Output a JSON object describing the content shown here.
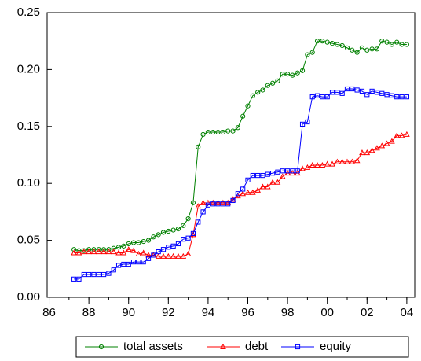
{
  "chart_data": {
    "type": "line",
    "x": [
      1987.25,
      1987.5,
      1987.75,
      1988,
      1988.25,
      1988.5,
      1988.75,
      1989,
      1989.25,
      1989.5,
      1989.75,
      1990,
      1990.25,
      1990.5,
      1990.75,
      1991,
      1991.25,
      1991.5,
      1991.75,
      1992,
      1992.25,
      1992.5,
      1992.75,
      1993,
      1993.25,
      1993.5,
      1993.75,
      1994,
      1994.25,
      1994.5,
      1994.75,
      1995,
      1995.25,
      1995.5,
      1995.75,
      1996,
      1996.25,
      1996.5,
      1996.75,
      1997,
      1997.25,
      1997.5,
      1997.75,
      1998,
      1998.25,
      1998.5,
      1998.75,
      1999,
      1999.25,
      1999.5,
      1999.75,
      2000,
      2000.25,
      2000.5,
      2000.75,
      2001,
      2001.25,
      2001.5,
      2001.75,
      2002,
      2002.25,
      2002.5,
      2002.75,
      2003,
      2003.25,
      2003.5,
      2003.75,
      2004
    ],
    "series": [
      {
        "name": "total assets",
        "color": "#008000",
        "marker": "circle",
        "values": [
          0.042,
          0.041,
          0.041,
          0.042,
          0.042,
          0.042,
          0.042,
          0.042,
          0.043,
          0.044,
          0.045,
          0.047,
          0.048,
          0.048,
          0.049,
          0.05,
          0.053,
          0.055,
          0.057,
          0.058,
          0.059,
          0.06,
          0.063,
          0.069,
          0.083,
          0.132,
          0.143,
          0.145,
          0.145,
          0.145,
          0.145,
          0.146,
          0.146,
          0.149,
          0.159,
          0.168,
          0.177,
          0.18,
          0.182,
          0.186,
          0.188,
          0.19,
          0.196,
          0.196,
          0.195,
          0.197,
          0.199,
          0.213,
          0.215,
          0.225,
          0.225,
          0.224,
          0.223,
          0.222,
          0.221,
          0.219,
          0.217,
          0.215,
          0.219,
          0.217,
          0.218,
          0.218,
          0.225,
          0.224,
          0.222,
          0.224,
          0.222,
          0.222
        ]
      },
      {
        "name": "debt",
        "color": "#ff0000",
        "marker": "triangle",
        "values": [
          0.039,
          0.039,
          0.04,
          0.04,
          0.04,
          0.04,
          0.04,
          0.04,
          0.04,
          0.039,
          0.039,
          0.042,
          0.041,
          0.038,
          0.039,
          0.037,
          0.037,
          0.036,
          0.036,
          0.036,
          0.036,
          0.036,
          0.036,
          0.038,
          0.055,
          0.08,
          0.083,
          0.083,
          0.083,
          0.083,
          0.083,
          0.083,
          0.086,
          0.089,
          0.091,
          0.092,
          0.092,
          0.094,
          0.097,
          0.097,
          0.101,
          0.101,
          0.106,
          0.109,
          0.109,
          0.109,
          0.113,
          0.114,
          0.116,
          0.116,
          0.116,
          0.117,
          0.117,
          0.119,
          0.119,
          0.119,
          0.119,
          0.12,
          0.127,
          0.127,
          0.129,
          0.131,
          0.133,
          0.135,
          0.137,
          0.142,
          0.142,
          0.143
        ]
      },
      {
        "name": "equity",
        "color": "#0000ff",
        "marker": "square",
        "values": [
          0.016,
          0.016,
          0.02,
          0.02,
          0.02,
          0.02,
          0.02,
          0.021,
          0.024,
          0.028,
          0.029,
          0.029,
          0.031,
          0.031,
          0.031,
          0.034,
          0.037,
          0.04,
          0.042,
          0.044,
          0.045,
          0.047,
          0.051,
          0.052,
          0.056,
          0.066,
          0.075,
          0.081,
          0.082,
          0.082,
          0.082,
          0.082,
          0.085,
          0.091,
          0.095,
          0.103,
          0.107,
          0.107,
          0.107,
          0.108,
          0.109,
          0.11,
          0.111,
          0.111,
          0.111,
          0.111,
          0.152,
          0.154,
          0.176,
          0.177,
          0.176,
          0.176,
          0.18,
          0.18,
          0.179,
          0.183,
          0.183,
          0.182,
          0.181,
          0.178,
          0.181,
          0.18,
          0.179,
          0.178,
          0.177,
          0.176,
          0.176,
          0.176
        ]
      }
    ],
    "xlim": [
      1985.9,
      2004.4
    ],
    "xticks": [
      {
        "value": 1986,
        "label": "86"
      },
      {
        "value": 1988,
        "label": "88"
      },
      {
        "value": 1990,
        "label": "90"
      },
      {
        "value": 1992,
        "label": "92"
      },
      {
        "value": 1994,
        "label": "94"
      },
      {
        "value": 1996,
        "label": "96"
      },
      {
        "value": 1998,
        "label": "98"
      },
      {
        "value": 2000,
        "label": "00"
      },
      {
        "value": 2002,
        "label": "02"
      },
      {
        "value": 2004,
        "label": "04"
      }
    ],
    "ylim": [
      0,
      0.25
    ],
    "yticks": [
      {
        "value": 0,
        "label": "0.00"
      },
      0.05,
      {
        "value": 0.1,
        "label": "0.10"
      },
      0.15,
      {
        "value": 0.2,
        "label": "0.20"
      },
      0.25
    ],
    "legend": "bottom"
  }
}
